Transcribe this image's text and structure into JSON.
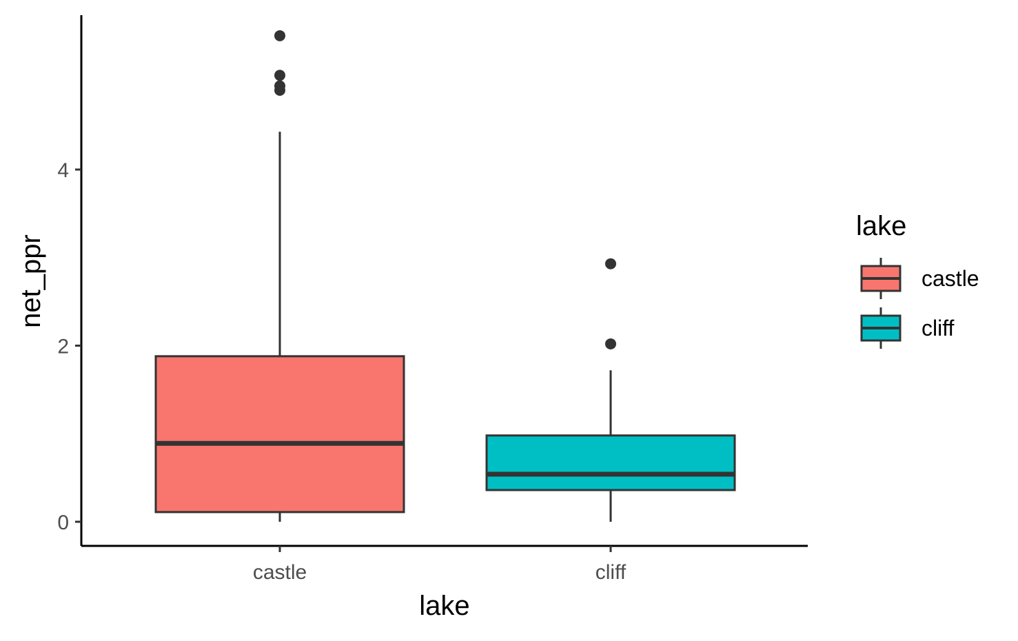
{
  "chart_data": {
    "type": "boxplot",
    "title": "",
    "xlabel": "lake",
    "ylabel": "net_ppr",
    "categories": [
      "castle",
      "cliff"
    ],
    "ylim": [
      -0.27,
      5.75
    ],
    "yticks": [
      0,
      2,
      4
    ],
    "y_tick_labels": [
      "0",
      "2",
      "4"
    ],
    "grid": false,
    "legend": {
      "title": "lake",
      "position": "right",
      "entries": [
        "castle",
        "cliff"
      ]
    },
    "colors": {
      "castle": "#F8766D",
      "cliff": "#00BFC4",
      "outline": "#333333"
    },
    "boxes": [
      {
        "category": "castle",
        "min": 0.0,
        "q1": 0.11,
        "median": 0.89,
        "q3": 1.88,
        "max": 4.43,
        "outliers": [
          4.9,
          4.95,
          5.07,
          5.52
        ]
      },
      {
        "category": "cliff",
        "min": 0.0,
        "q1": 0.36,
        "median": 0.54,
        "q3": 0.98,
        "max": 1.72,
        "outliers": [
          2.02,
          2.93
        ]
      }
    ]
  }
}
